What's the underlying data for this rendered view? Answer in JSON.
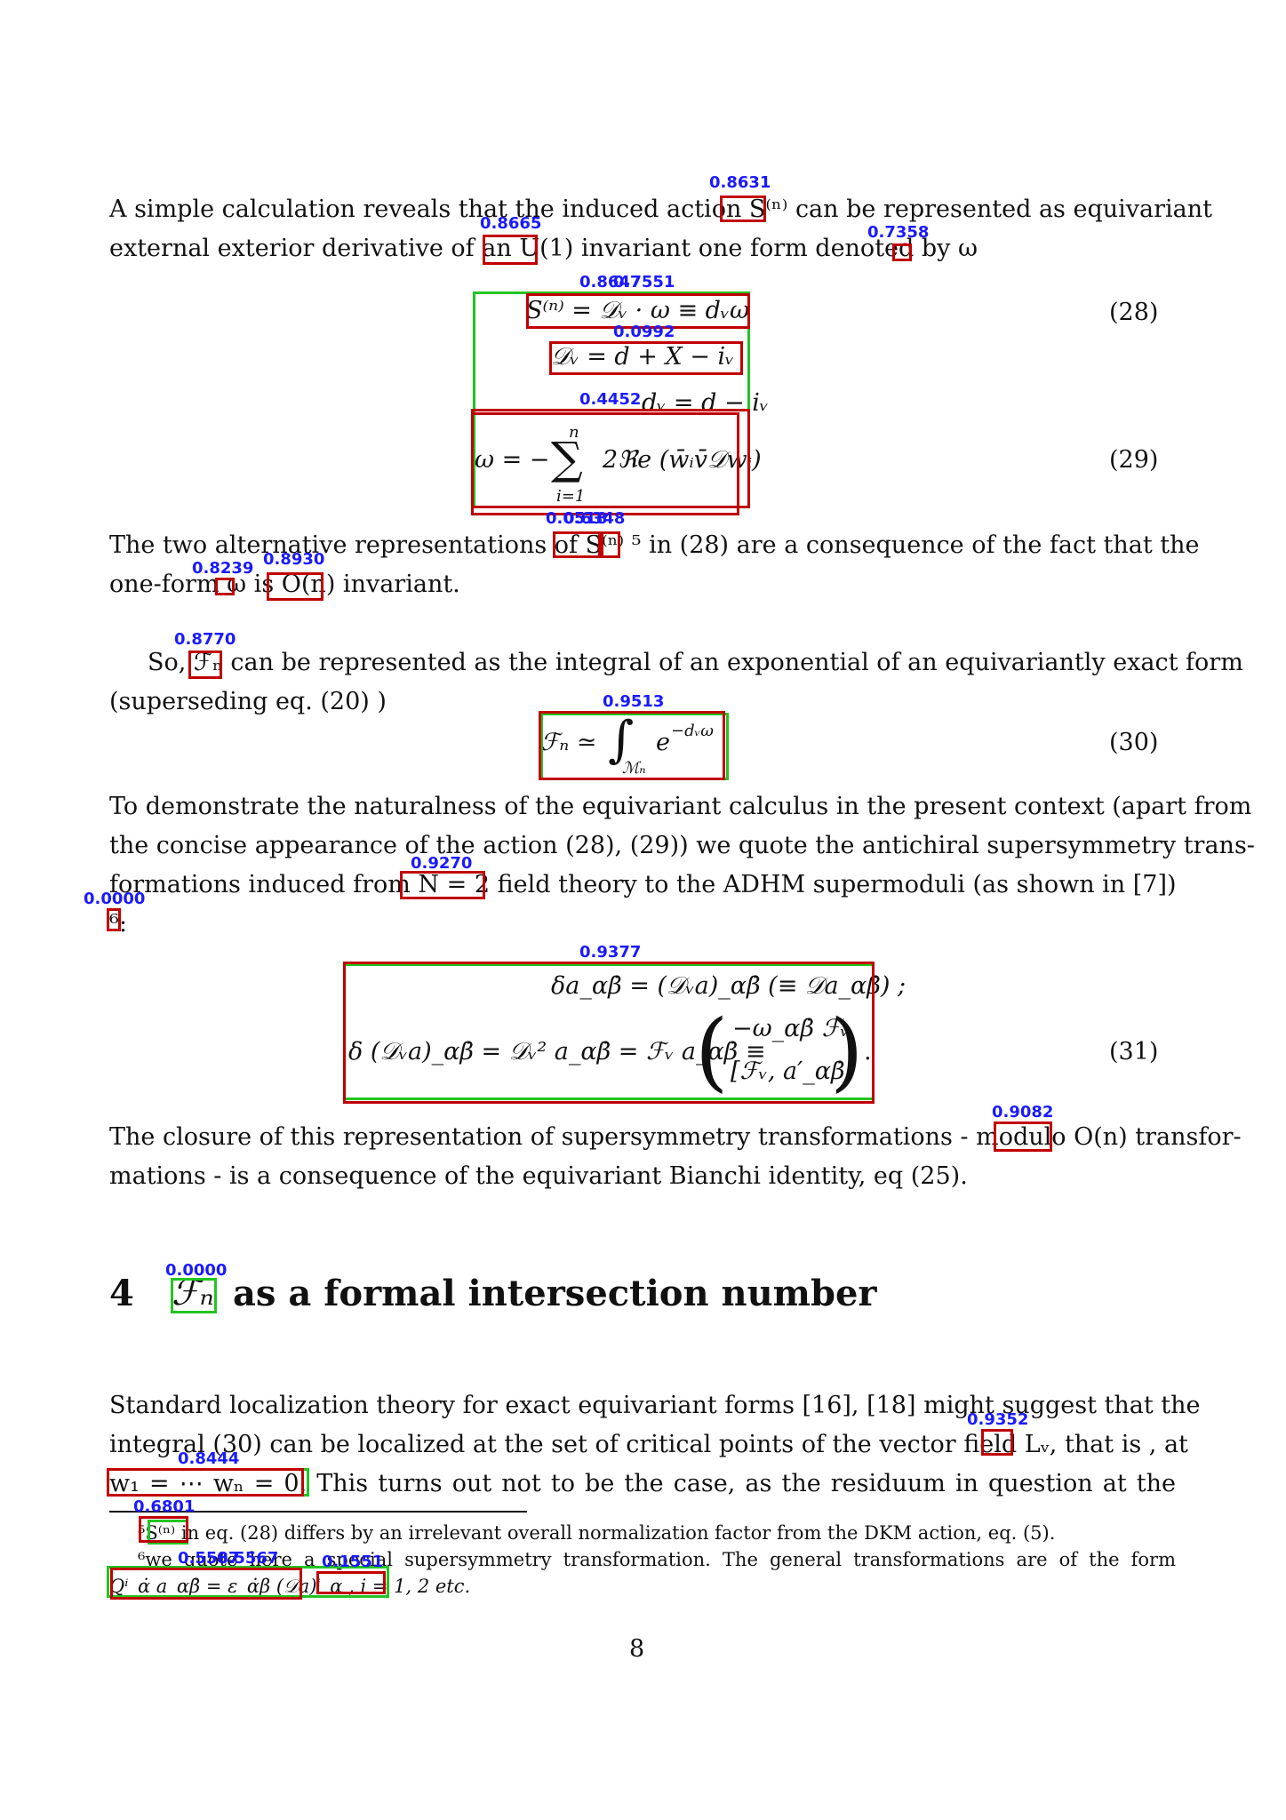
{
  "paragraphs": {
    "p1_line1": "A simple calculation reveals that the induced action S⁽ⁿ⁾ can be represented as equivariant",
    "p1_line2": "external exterior derivative of an U(1) invariant one form denoted by ω",
    "p2_line1": "The two alternative representations of S⁽ⁿ⁾ ⁵ in (28) are a consequence of the fact that the",
    "p2_line2": "one-form ω is O(n) invariant.",
    "p3_line1": "So, ℱₙ can be represented as the integral of an exponential of an equivariantly exact form",
    "p3_line2": "(superseding eq. (20) )",
    "p4_line1": "To demonstrate the naturalness of the equivariant calculus in the present context (apart from",
    "p4_line2": "the concise appearance of the action (28), (29)) we quote the antichiral supersymmetry trans-",
    "p4_line3": "formations induced from N = 2 field theory to the ADHM supermoduli (as shown in [7])",
    "p4_line4": "⁶:",
    "p5_line1": "The closure of this representation of supersymmetry transformations - modulo O(n) transfor-",
    "p5_line2": "mations - is a consequence of the equivariant Bianchi identity, eq (25).",
    "p6_line1": "Standard localization theory for exact equivariant forms [16], [18] might suggest that the",
    "p6_line2": "integral (30) can be localized at the set of critical points of the vector field Lᵥ, that is , at",
    "p6_line3": "w₁ = ⋯ wₙ = 0.  This turns out not to be the case, as the residuum in question at the"
  },
  "equations": {
    "eq28": "S⁽ⁿ⁾ = 𝒟ᵥ · ω ≡ dᵥω",
    "eq28_line2": "𝒟ᵥ = d + X − iᵥ",
    "eq28_line3": "dᵥ = d − iᵥ",
    "eq29_lhs": "ω = −",
    "eq29_sum_top": "n",
    "eq29_sum_sign": "∑",
    "eq29_sum_bottom": "i=1",
    "eq29_rhs": "2ℜe (w̄ᵢv̄𝒟wᵢ)",
    "eq30_lhs": "ℱₙ ≃",
    "eq30_int": "∫",
    "eq30_sub": "ℳₙ",
    "eq30_rhs": "e",
    "eq30_exp": "−dᵥω",
    "eq31_line1": "δa_αβ̇ = (𝒟ᵥa)_αβ̇   (≡ 𝒟a_αβ̇) ;",
    "eq31_line2_lhs": "δ (𝒟ᵥa)_αβ̇ = 𝒟ᵥ² a_αβ̇ = ℱᵥ a_αβ̇ ≡",
    "eq31_vec_top": "−ω_αβ̇ ℱᵥ",
    "eq31_vec_bottom": "[ℱᵥ, a′_αβ̇]",
    "eq31_dot": "."
  },
  "equation_numbers": {
    "n28": "(28)",
    "n29": "(29)",
    "n30": "(30)",
    "n31": "(31)"
  },
  "section": {
    "number": "4",
    "symbol": "ℱₙ",
    "title": "as a formal intersection number"
  },
  "footnotes": {
    "fn5": "⁵S⁽ⁿ⁾ in eq. (28) differs by an irrelevant overall normalization factor from the DKM action, eq. (5).",
    "fn6_line1": "⁶we quote here a special supersymmetry transformation.  The general transformations are of the form",
    "fn6_line2": "Qⁱ_α̇ a_αβ̇ = ε_α̇β (𝒟a)ⁱ_α ,  i = 1, 2 etc."
  },
  "page_number": "8",
  "detection_scores": [
    "0.8631",
    "0.8665",
    "0.7358",
    "0.8647",
    "0.7551",
    "0.0992",
    "0.4452",
    "0.0518",
    "0.6348",
    "0.8239",
    "0.8930",
    "0.8770",
    "0.9513",
    "0.9270",
    "0.0000",
    "0.9377",
    "0.9082",
    "0.0000",
    "0.9352",
    "0.8444",
    "0.6801",
    "0.5587",
    "0.5567",
    "0.1551"
  ],
  "colors": {
    "text": "#111111",
    "box_red": "#c00000",
    "box_green": "#22c422",
    "score_label": "#1a1aff"
  }
}
